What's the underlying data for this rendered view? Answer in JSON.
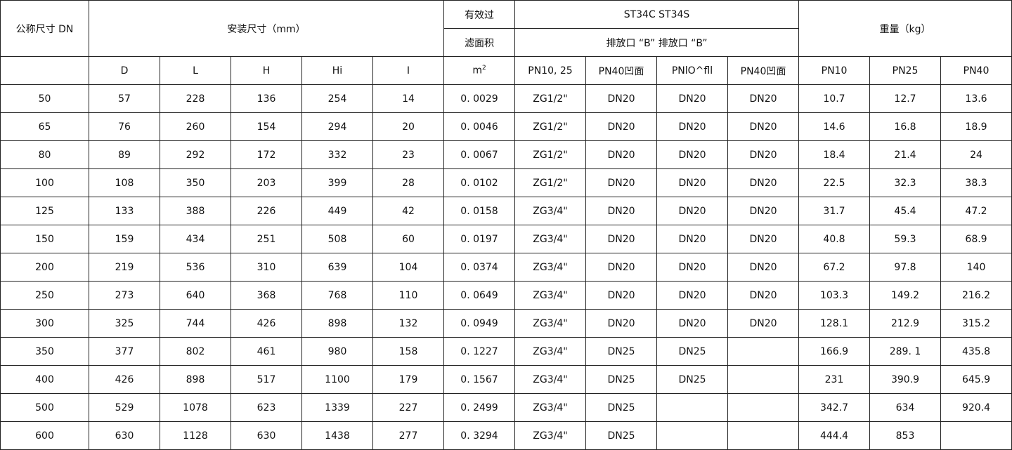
{
  "header": {
    "dn": "公称尺寸 DN",
    "install": "安装尺寸（mm）",
    "filter_top": "有效过",
    "filter_bottom": "滤面积",
    "model": "ST34C ST34S",
    "drain": "排放口 “B” 排放口 “B”",
    "weight": "重量（kg）",
    "sub": [
      "D",
      "L",
      "H",
      "Hi",
      "I",
      "m",
      "PN10, 25",
      "PN40凹面",
      "PNlO^fll",
      "PN40凹面",
      "PN10",
      "PN25",
      "PN40"
    ],
    "m_sup": "2"
  },
  "rows": [
    [
      "50",
      "57",
      "228",
      "136",
      "254",
      "14",
      "0. 0029",
      "ZG1/2\"",
      "DN20",
      "DN20",
      "DN20",
      "10.7",
      "12.7",
      "13.6"
    ],
    [
      "65",
      "76",
      "260",
      "154",
      "294",
      "20",
      "0. 0046",
      "ZG1/2\"",
      "DN20",
      "DN20",
      "DN20",
      "14.6",
      "16.8",
      "18.9"
    ],
    [
      "80",
      "89",
      "292",
      "172",
      "332",
      "23",
      "0. 0067",
      "ZG1/2\"",
      "DN20",
      "DN20",
      "DN20",
      "18.4",
      "21.4",
      "24"
    ],
    [
      "100",
      "108",
      "350",
      "203",
      "399",
      "28",
      "0. 0102",
      "ZG1/2\"",
      "DN20",
      "DN20",
      "DN20",
      "22.5",
      "32.3",
      "38.3"
    ],
    [
      "125",
      "133",
      "388",
      "226",
      "449",
      "42",
      "0. 0158",
      "ZG3/4\"",
      "DN20",
      "DN20",
      "DN20",
      "31.7",
      "45.4",
      "47.2"
    ],
    [
      "150",
      "159",
      "434",
      "251",
      "508",
      "60",
      "0. 0197",
      "ZG3/4\"",
      "DN20",
      "DN20",
      "DN20",
      "40.8",
      "59.3",
      "68.9"
    ],
    [
      "200",
      "219",
      "536",
      "310",
      "639",
      "104",
      "0. 0374",
      "ZG3/4\"",
      "DN20",
      "DN20",
      "DN20",
      "67.2",
      "97.8",
      "140"
    ],
    [
      "250",
      "273",
      "640",
      "368",
      "768",
      "110",
      "0. 0649",
      "ZG3/4\"",
      "DN20",
      "DN20",
      "DN20",
      "103.3",
      "149.2",
      "216.2"
    ],
    [
      "300",
      "325",
      "744",
      "426",
      "898",
      "132",
      "0. 0949",
      "ZG3/4\"",
      "DN20",
      "DN20",
      "DN20",
      "128.1",
      "212.9",
      "315.2"
    ],
    [
      "350",
      "377",
      "802",
      "461",
      "980",
      "158",
      "0. 1227",
      "ZG3/4\"",
      "DN25",
      "DN25",
      "",
      "166.9",
      "289. 1",
      "435.8"
    ],
    [
      "400",
      "426",
      "898",
      "517",
      "1100",
      "179",
      "0. 1567",
      "ZG3/4\"",
      "DN25",
      "DN25",
      "",
      "231",
      "390.9",
      "645.9"
    ],
    [
      "500",
      "529",
      "1078",
      "623",
      "1339",
      "227",
      "0. 2499",
      "ZG3/4\"",
      "DN25",
      "",
      "",
      "342.7",
      "634",
      "920.4"
    ],
    [
      "600",
      "630",
      "1128",
      "630",
      "1438",
      "277",
      "0. 3294",
      "ZG3/4\"",
      "DN25",
      "",
      "",
      "444.4",
      "853",
      ""
    ]
  ]
}
